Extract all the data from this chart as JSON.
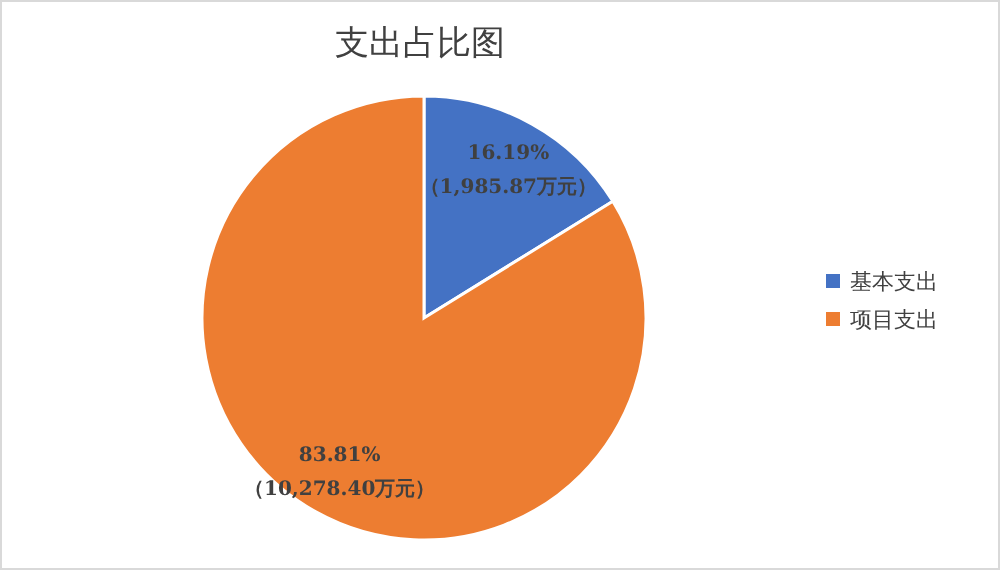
{
  "chart_data": {
    "type": "pie",
    "title": "支出占比图",
    "categories": [
      "基本支出",
      "项目支出"
    ],
    "values": [
      1985.87,
      10278.4
    ],
    "colors": [
      "#4472c4",
      "#ed7d31"
    ],
    "value_labels": [
      "16.19%\n（1,985.87万元）",
      "83.81%\n（10,278.40万元）"
    ],
    "legend": "right"
  }
}
